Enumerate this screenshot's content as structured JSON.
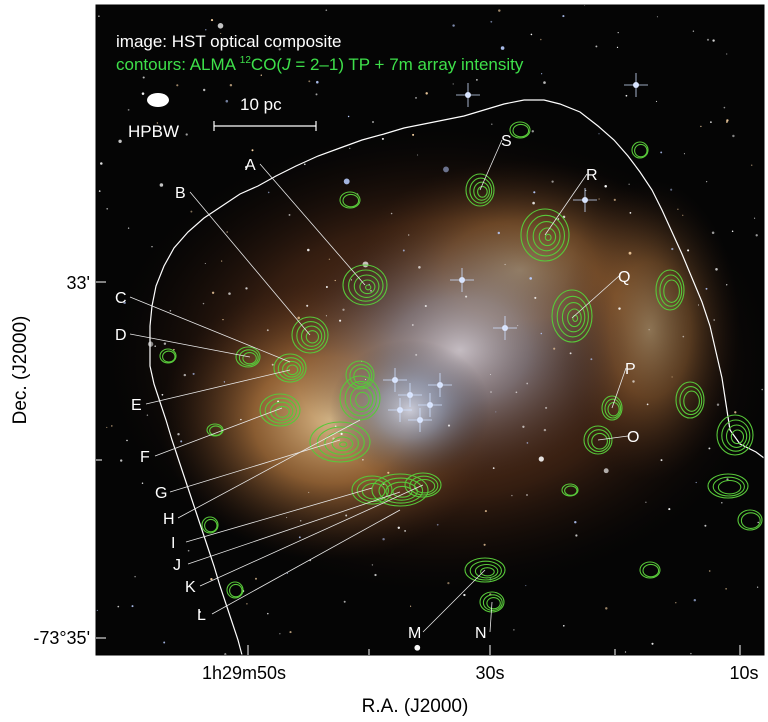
{
  "header": {
    "line1": "image: HST optical composite",
    "line2_prefix": "contours: ALMA ",
    "line2_sup": "12",
    "line2_co": "CO(",
    "line2_J": "J",
    "line2_suffix": " = 2–1) TP + 7m array intensity"
  },
  "beam_label": "HPBW",
  "scale_label": "10 pc",
  "axes": {
    "xlabel": "R.A. (J2000)",
    "ylabel": "Dec. (J2000)",
    "xticks": [
      "1h29m50s",
      "30s",
      "10s"
    ],
    "yticks": [
      "33'",
      "-73°35'"
    ]
  },
  "sources": [
    "A",
    "B",
    "C",
    "D",
    "E",
    "F",
    "G",
    "H",
    "I",
    "J",
    "K",
    "L",
    "M",
    "N",
    "O",
    "P",
    "Q",
    "R",
    "S"
  ],
  "colors": {
    "contour": "#58c83a",
    "header_green": "#3ee04a",
    "label": "#ffffff",
    "boundary": "#ffffff"
  }
}
